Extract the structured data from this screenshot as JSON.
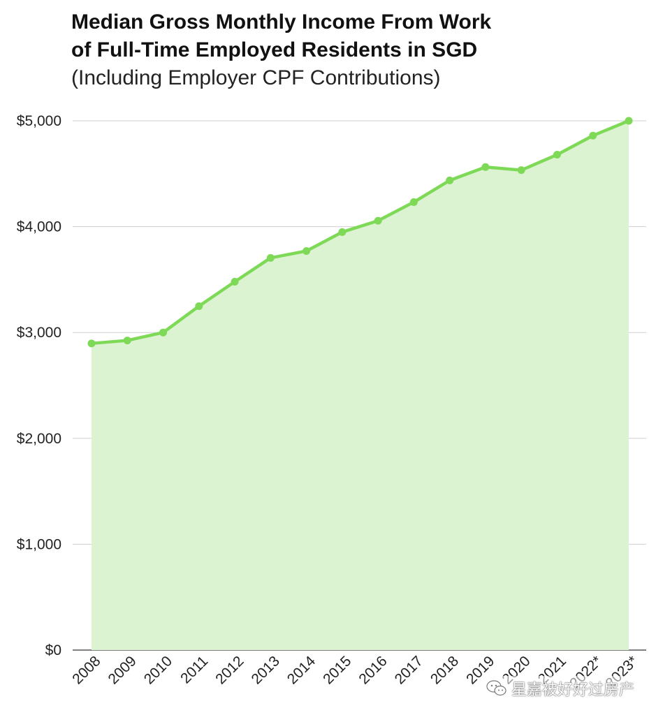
{
  "chart_data": {
    "type": "area",
    "title_line1": "Median Gross Monthly Income From Work",
    "title_line2": "of Full-Time Employed Residents in SGD",
    "subtitle": "(Including Employer CPF Contributions)",
    "xlabel": "",
    "ylabel": "",
    "categories": [
      "2008",
      "2009",
      "2010",
      "2011",
      "2012",
      "2013",
      "2014",
      "2015",
      "2016",
      "2017",
      "2018",
      "2019",
      "2020",
      "2021",
      "2022*",
      "2023*"
    ],
    "values": [
      2897,
      2925,
      3000,
      3249,
      3480,
      3705,
      3770,
      3949,
      4056,
      4232,
      4437,
      4563,
      4534,
      4680,
      4860,
      5000
    ],
    "ylim": [
      0,
      5000
    ],
    "yticks": [
      0,
      1000,
      2000,
      3000,
      4000,
      5000
    ],
    "ytick_labels": [
      "$0",
      "$1,000",
      "$2,000",
      "$3,000",
      "$4,000",
      "$5,000"
    ],
    "grid": true,
    "line_color": "#7ed957",
    "fill_color": "#dcf3d2"
  },
  "watermark": {
    "text": "星嘉被好好过房产",
    "icon": "wechat-icon"
  }
}
